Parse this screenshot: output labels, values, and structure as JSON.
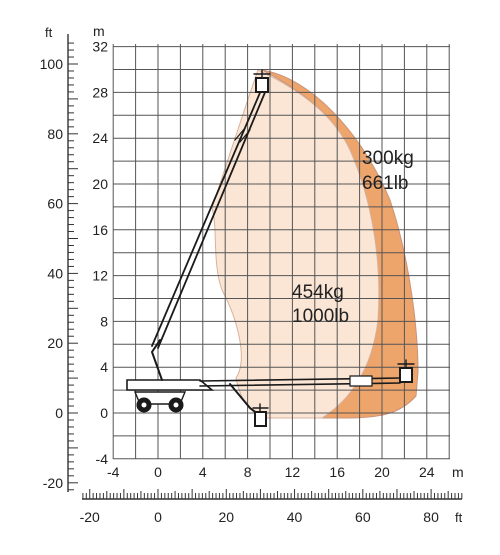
{
  "diagram": {
    "units": {
      "meters": "m",
      "feet": "ft"
    },
    "m_x_ticks": [
      "-4",
      "0",
      "4",
      "8",
      "12",
      "16",
      "20",
      "24"
    ],
    "m_y_ticks": [
      "32",
      "28",
      "24",
      "20",
      "16",
      "12",
      "8",
      "4",
      "0",
      "-4"
    ],
    "ft_x_ticks": [
      "-20",
      "0",
      "20",
      "40",
      "60",
      "80"
    ],
    "ft_y_ticks": [
      "100",
      "80",
      "60",
      "40",
      "20",
      "0",
      "-20"
    ],
    "zones": [
      {
        "load_kg": "454kg",
        "load_lb": "1000lb",
        "color": "#fbe6d6"
      },
      {
        "load_kg": "300kg",
        "load_lb": "661lb",
        "color": "#eea56c"
      }
    ],
    "colors": {
      "grid": "#555555",
      "machine": "#1a1a1a",
      "outline": "#c9937a"
    }
  }
}
